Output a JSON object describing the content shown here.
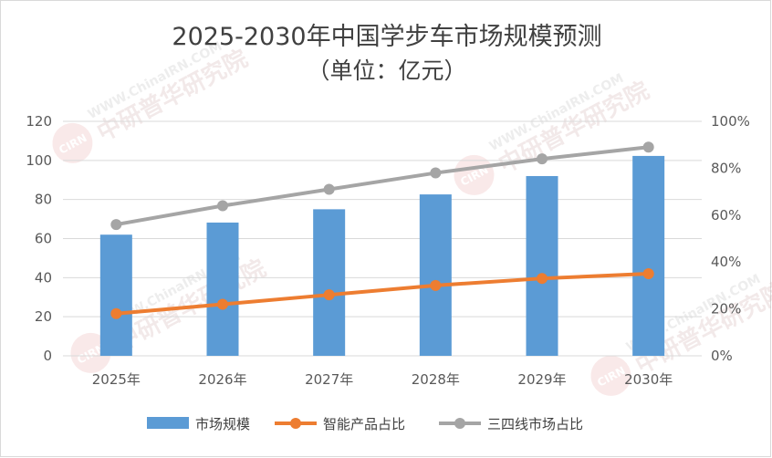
{
  "chart_data": {
    "type": "bar",
    "title": "2025-2030年中国学步车市场规模预测",
    "subtitle": "（单位：亿元）",
    "categories": [
      "2025年",
      "2026年",
      "2027年",
      "2028年",
      "2029年",
      "2030年"
    ],
    "series": [
      {
        "name": "市场规模",
        "type": "bar",
        "axis": "left",
        "color": "#5b9bd5",
        "values": [
          62.0,
          68.2,
          75.0,
          82.6,
          92.0,
          102.3
        ]
      },
      {
        "name": "智能产品占比",
        "type": "line",
        "axis": "right",
        "color": "#ed7d31",
        "values": [
          0.18,
          0.22,
          0.26,
          0.3,
          0.33,
          0.35
        ]
      },
      {
        "name": "三四线市场占比",
        "type": "line",
        "axis": "right",
        "color": "#a5a5a5",
        "values": [
          0.56,
          0.64,
          0.71,
          0.78,
          0.84,
          0.89
        ]
      }
    ],
    "y_left": {
      "min": 0,
      "max": 120,
      "ticks": [
        "0",
        "20",
        "40",
        "60",
        "80",
        "100",
        "120"
      ]
    },
    "y_right": {
      "min": 0,
      "max": 1,
      "ticks": [
        "0%",
        "20%",
        "40%",
        "60%",
        "80%",
        "100%"
      ]
    },
    "xlabel": "",
    "ylabel": "",
    "grid": true,
    "legend_position": "bottom"
  },
  "watermark": {
    "url_text": "WWW.ChinaIRN.COM",
    "name_text": "中研普华研究院",
    "logo_text": "CIRN"
  }
}
